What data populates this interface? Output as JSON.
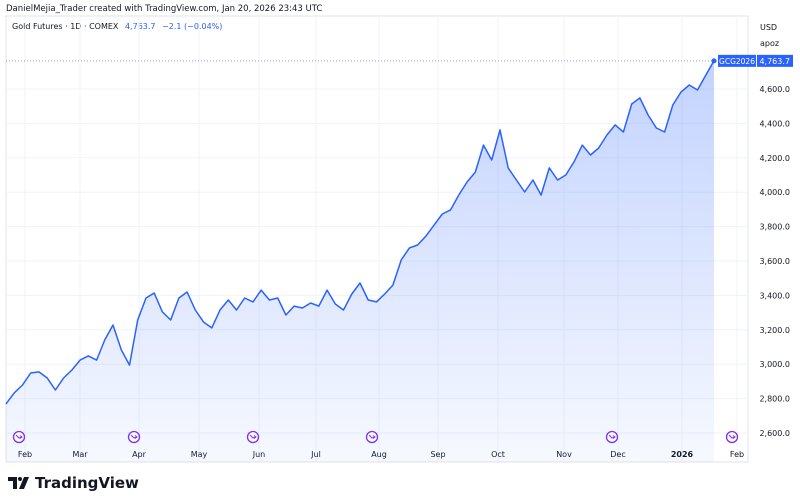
{
  "header": {
    "credit": "DanielMejia_Trader created with TradingView.com, Jan 20, 2026 23:43 UTC",
    "symbol": "Gold Futures · 1D · COMEX",
    "last": "4,763.7",
    "change": "−2.1 (−0.04%)",
    "currency": "USD",
    "unit": "apoz"
  },
  "badge": {
    "ticker": "GCG2026",
    "price": "4,763.7"
  },
  "footer": {
    "logo_text": "TradingView"
  },
  "colors": {
    "line": "#2962ff",
    "fill": "#2962ff",
    "event": "#7b2ff7",
    "grid": "#f0f3fa"
  },
  "chart_data": {
    "type": "area",
    "title": "Gold Futures · 1D · COMEX",
    "ylabel": "USD",
    "ylim": [
      2550,
      4900
    ],
    "yticks": [
      "2,600.0",
      "2,800.0",
      "3,000.0",
      "3,200.0",
      "3,400.0",
      "3,600.0",
      "3,800.0",
      "4,000.0",
      "4,200.0",
      "4,400.0",
      "4,600.0"
    ],
    "ytick_values": [
      2600,
      2800,
      3000,
      3200,
      3400,
      3600,
      3800,
      4000,
      4200,
      4400,
      4600
    ],
    "xticks": [
      "Feb",
      "Mar",
      "Apr",
      "May",
      "Jun",
      "Jul",
      "Aug",
      "Sep",
      "Oct",
      "Nov",
      "Dec",
      "2026",
      "Feb"
    ],
    "values": [
      2769,
      2833,
      2879,
      2949,
      2955,
      2920,
      2850,
      2920,
      2966,
      3024,
      3048,
      3024,
      3141,
      3228,
      3083,
      2995,
      3257,
      3385,
      3414,
      3304,
      3257,
      3385,
      3420,
      3315,
      3245,
      3211,
      3315,
      3373,
      3315,
      3385,
      3362,
      3431,
      3373,
      3385,
      3286,
      3338,
      3327,
      3356,
      3338,
      3431,
      3350,
      3315,
      3408,
      3472,
      3373,
      3362,
      3408,
      3460,
      3606,
      3676,
      3693,
      3745,
      3809,
      3873,
      3897,
      3984,
      4059,
      4117,
      4274,
      4187,
      4362,
      4141,
      4071,
      4001,
      4071,
      3984,
      4141,
      4071,
      4100,
      4176,
      4274,
      4216,
      4257,
      4333,
      4391,
      4350,
      4513,
      4548,
      4449,
      4373,
      4350,
      4507,
      4583,
      4623,
      4594,
      4681,
      4763.7
    ],
    "grid": true
  }
}
